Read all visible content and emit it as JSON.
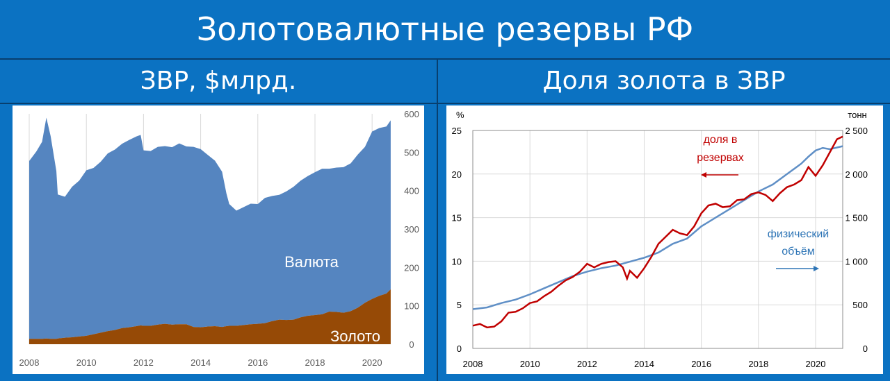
{
  "header": {
    "title": "Золотовалютные резервы РФ",
    "left_subtitle": "ЗВР, $млрд.",
    "right_subtitle": "Доля золота в ЗВР"
  },
  "colors": {
    "background": "#0b72c2",
    "currency_area": "#5585c0",
    "gold_area": "#964a06",
    "share_line": "#c00000",
    "volume_line": "#5f8fc6"
  },
  "chart_data": [
    {
      "type": "area",
      "stacked": true,
      "y_axis_side": "right",
      "ylim": [
        0,
        600
      ],
      "yticks": [
        0,
        100,
        200,
        300,
        400,
        500,
        600
      ],
      "xticks": [
        "2008",
        "2010",
        "2012",
        "2014",
        "2016",
        "2018",
        "2020"
      ],
      "xlim": [
        2008,
        2020.75
      ],
      "grid": "vertical",
      "x": [
        2008.0,
        2008.25,
        2008.45,
        2008.6,
        2008.75,
        2008.95,
        2009.0,
        2009.25,
        2009.5,
        2009.75,
        2010.0,
        2010.25,
        2010.5,
        2010.75,
        2011.0,
        2011.25,
        2011.5,
        2011.75,
        2011.9,
        2012.0,
        2012.25,
        2012.5,
        2012.75,
        2013.0,
        2013.25,
        2013.5,
        2013.75,
        2014.0,
        2014.25,
        2014.5,
        2014.75,
        2014.9,
        2015.0,
        2015.25,
        2015.5,
        2015.75,
        2016.0,
        2016.25,
        2016.5,
        2016.75,
        2017.0,
        2017.25,
        2017.5,
        2017.75,
        2018.0,
        2018.25,
        2018.5,
        2018.75,
        2019.0,
        2019.25,
        2019.5,
        2019.75,
        2020.0,
        2020.25,
        2020.5,
        2020.65
      ],
      "series": [
        {
          "name": "Золото",
          "values": [
            14,
            14,
            14,
            15,
            14,
            14,
            15,
            17,
            18,
            20,
            22,
            26,
            30,
            34,
            37,
            42,
            44,
            47,
            49,
            48,
            48,
            51,
            53,
            51,
            52,
            52,
            45,
            44,
            46,
            47,
            45,
            47,
            48,
            48,
            50,
            52,
            53,
            55,
            60,
            64,
            63,
            64,
            70,
            74,
            76,
            78,
            85,
            84,
            82,
            86,
            95,
            108,
            118,
            126,
            132,
            143
          ]
        },
        {
          "name": "Валюта",
          "values": [
            463,
            488,
            513,
            575,
            528,
            437,
            375,
            367,
            392,
            406,
            431,
            433,
            445,
            463,
            470,
            480,
            488,
            494,
            496,
            457,
            455,
            463,
            463,
            462,
            471,
            463,
            469,
            464,
            447,
            431,
            404,
            346,
            317,
            300,
            307,
            314,
            312,
            326,
            326,
            325,
            335,
            346,
            356,
            364,
            372,
            379,
            372,
            376,
            379,
            385,
            399,
            406,
            436,
            437,
            435,
            440
          ]
        }
      ],
      "annotations": [
        "Валюта",
        "Золото"
      ]
    },
    {
      "type": "line",
      "ylim_left": [
        0,
        25
      ],
      "ylim_right": [
        0,
        2500
      ],
      "yticks_left": [
        0,
        5,
        10,
        15,
        20,
        25
      ],
      "yticks_right": [
        "0",
        "500",
        "1 000",
        "1 500",
        "2 000",
        "2 500"
      ],
      "ylabel_left": "%",
      "ylabel_right": "тонн",
      "xticks": [
        "2008",
        "2010",
        "2012",
        "2014",
        "2016",
        "2018",
        "2020"
      ],
      "xlim": [
        2008,
        2020.95
      ],
      "grid": "both",
      "series": [
        {
          "name": "доля в резервах",
          "axis": "left",
          "x": [
            2008.0,
            2008.25,
            2008.5,
            2008.75,
            2009.0,
            2009.25,
            2009.5,
            2009.75,
            2010.0,
            2010.25,
            2010.5,
            2010.75,
            2011.0,
            2011.25,
            2011.5,
            2011.75,
            2012.0,
            2012.25,
            2012.5,
            2012.75,
            2013.0,
            2013.25,
            2013.4,
            2013.5,
            2013.75,
            2014.0,
            2014.25,
            2014.5,
            2014.75,
            2015.0,
            2015.25,
            2015.5,
            2015.75,
            2016.0,
            2016.25,
            2016.5,
            2016.75,
            2017.0,
            2017.25,
            2017.5,
            2017.75,
            2018.0,
            2018.25,
            2018.5,
            2018.75,
            2019.0,
            2019.25,
            2019.5,
            2019.75,
            2020.0,
            2020.25,
            2020.5,
            2020.75,
            2020.95
          ],
          "values": [
            2.6,
            2.8,
            2.4,
            2.5,
            3.1,
            4.1,
            4.2,
            4.6,
            5.2,
            5.4,
            6.0,
            6.5,
            7.2,
            7.8,
            8.2,
            8.8,
            9.7,
            9.3,
            9.7,
            9.9,
            10.0,
            9.3,
            8.0,
            8.9,
            8.1,
            9.2,
            10.5,
            12.0,
            12.8,
            13.6,
            13.2,
            13.0,
            14.0,
            15.5,
            16.4,
            16.6,
            16.2,
            16.3,
            17.0,
            17.1,
            17.7,
            17.9,
            17.6,
            16.9,
            17.8,
            18.5,
            18.8,
            19.3,
            20.8,
            19.8,
            21.0,
            22.5,
            24.0,
            24.3
          ]
        },
        {
          "name": "физический объём",
          "axis": "right",
          "x": [
            2008.0,
            2008.5,
            2009.0,
            2009.5,
            2010.0,
            2010.5,
            2011.0,
            2011.5,
            2012.0,
            2012.5,
            2013.0,
            2013.5,
            2014.0,
            2014.5,
            2015.0,
            2015.5,
            2016.0,
            2016.5,
            2017.0,
            2017.5,
            2018.0,
            2018.5,
            2019.0,
            2019.5,
            2019.75,
            2020.0,
            2020.25,
            2020.5,
            2020.95
          ],
          "values": [
            450,
            470,
            520,
            560,
            620,
            690,
            760,
            830,
            880,
            920,
            950,
            995,
            1040,
            1100,
            1200,
            1260,
            1400,
            1500,
            1600,
            1700,
            1800,
            1880,
            2000,
            2120,
            2200,
            2270,
            2300,
            2285,
            2320
          ]
        }
      ],
      "annotations": [
        "доля в",
        "резервах",
        "физический",
        "объём"
      ]
    }
  ]
}
